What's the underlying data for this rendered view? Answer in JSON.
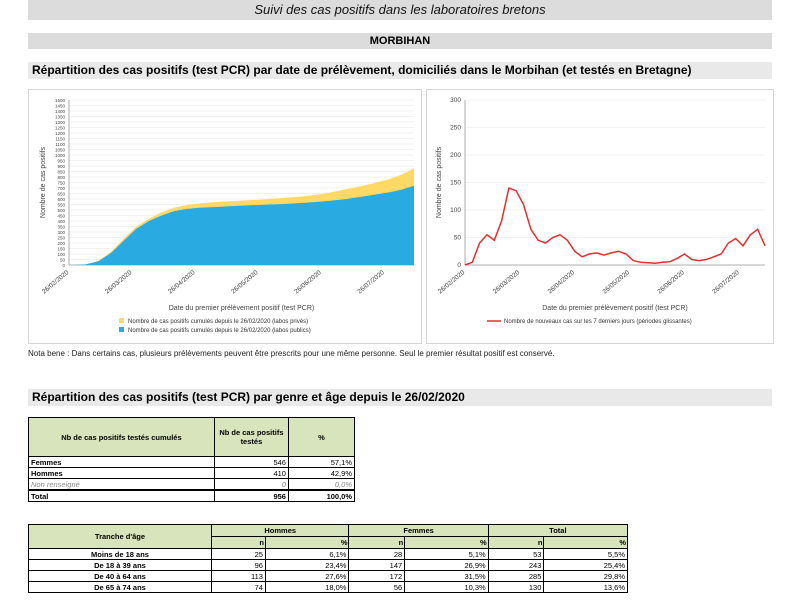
{
  "header": {
    "title": "Suivi des cas positifs dans les laboratoires bretons",
    "department": "MORBIHAN"
  },
  "section1": {
    "title": "Répartition des cas positifs (test PCR) par date de prélèvement, domiciliés dans le Morbihan (et testés en Bretagne)"
  },
  "section2": {
    "title": "Répartition des cas positifs (test PCR) par genre et âge depuis le 26/02/2020"
  },
  "note": "Nota bene : Dans certains cas, plusieurs prélèvements peuvent être prescrits pour une même personne. Seul le premier résultat positif est conservé.",
  "chart_data": [
    {
      "type": "area",
      "xlabel": "Date du premier prélèvement positif (test PCR)",
      "ylabel": "Nombre de cas positifs",
      "ylim": [
        0,
        1500
      ],
      "yticks": [
        0,
        50,
        100,
        150,
        200,
        250,
        300,
        350,
        400,
        450,
        500,
        550,
        600,
        650,
        700,
        750,
        800,
        850,
        900,
        950,
        1000,
        1050,
        1100,
        1150,
        1200,
        1250,
        1300,
        1350,
        1400,
        1450,
        1500
      ],
      "xticks": [
        "26/02/2020",
        "26/03/2020",
        "26/04/2020",
        "26/05/2020",
        "26/06/2020",
        "26/07/2020"
      ],
      "x_index_range": [
        0,
        164
      ],
      "series": [
        {
          "name": "Nombre de cas positifs cumulés depuis le 26/02/2020 (labos privés)",
          "color": "#ffd966",
          "x": [
            0,
            8,
            14,
            20,
            26,
            32,
            38,
            44,
            50,
            56,
            62,
            72,
            82,
            92,
            102,
            112,
            122,
            132,
            142,
            152,
            158,
            164
          ],
          "values": [
            0,
            5,
            40,
            120,
            240,
            350,
            420,
            480,
            520,
            545,
            560,
            575,
            585,
            595,
            610,
            625,
            650,
            690,
            730,
            780,
            820,
            880
          ]
        },
        {
          "name": "Nombre de cas positifs cumulés depuis le 26/02/2020 (labos publics)",
          "color": "#29abe2",
          "x": [
            0,
            8,
            14,
            20,
            26,
            32,
            38,
            44,
            50,
            56,
            62,
            72,
            82,
            92,
            102,
            112,
            122,
            132,
            142,
            152,
            158,
            164
          ],
          "values": [
            0,
            5,
            35,
            110,
            220,
            330,
            400,
            450,
            490,
            510,
            520,
            530,
            540,
            548,
            555,
            565,
            580,
            600,
            630,
            660,
            685,
            720
          ]
        }
      ],
      "legend": "bottom"
    },
    {
      "type": "line",
      "xlabel": "Date du premier prélèvement positif (test PCR)",
      "ylabel": "Nombre de cas positifs",
      "ylim": [
        0,
        300
      ],
      "yticks": [
        0,
        50,
        100,
        150,
        200,
        250,
        300
      ],
      "xticks": [
        "26/02/2020",
        "26/03/2020",
        "26/04/2020",
        "26/05/2020",
        "26/06/2020",
        "26/07/2020"
      ],
      "x_index_range": [
        0,
        164
      ],
      "series": [
        {
          "name": "Nombre de nouveaux cas sur les 7 derniers jours (périodes glissantes)",
          "color": "#e03030",
          "x": [
            0,
            4,
            8,
            12,
            16,
            20,
            24,
            28,
            32,
            36,
            40,
            44,
            48,
            52,
            56,
            60,
            64,
            68,
            72,
            76,
            80,
            84,
            88,
            92,
            96,
            100,
            104,
            108,
            112,
            116,
            120,
            124,
            128,
            132,
            136,
            140,
            144,
            148,
            152,
            156,
            160,
            162,
            164
          ],
          "values": [
            0,
            5,
            40,
            55,
            45,
            80,
            140,
            135,
            110,
            65,
            45,
            40,
            50,
            55,
            45,
            25,
            15,
            20,
            22,
            18,
            22,
            25,
            20,
            8,
            5,
            4,
            3,
            5,
            6,
            12,
            20,
            10,
            8,
            10,
            15,
            20,
            40,
            48,
            35,
            55,
            65,
            50,
            35
          ]
        }
      ],
      "legend": "bottom"
    }
  ],
  "table1": {
    "headers": [
      "Nb de cas positifs testés cumulés",
      "Nb de cas positifs testés",
      "%"
    ],
    "rows": [
      {
        "label": "Femmes",
        "n": "546",
        "pct": "57,1%"
      },
      {
        "label": "Hommes",
        "n": "410",
        "pct": "42,9%"
      },
      {
        "label": "Non renseigné",
        "n": "0",
        "pct": "0,0%"
      },
      {
        "label": "Total",
        "n": "956",
        "pct": "100,0%"
      }
    ]
  },
  "table2": {
    "age_header": "Tranche d'âge",
    "groups": [
      "Hommes",
      "Femmes",
      "Total"
    ],
    "n": "n",
    "pct": "%",
    "rows": [
      {
        "label": "Moins de 18 ans",
        "h_n": "25",
        "h_p": "6,1%",
        "f_n": "28",
        "f_p": "5,1%",
        "t_n": "53",
        "t_p": "5,5%"
      },
      {
        "label": "De 18 à 39 ans",
        "h_n": "96",
        "h_p": "23,4%",
        "f_n": "147",
        "f_p": "26,9%",
        "t_n": "243",
        "t_p": "25,4%"
      },
      {
        "label": "De 40 à 64 ans",
        "h_n": "113",
        "h_p": "27,6%",
        "f_n": "172",
        "f_p": "31,5%",
        "t_n": "285",
        "t_p": "29,8%"
      },
      {
        "label": "De 65 à 74 ans",
        "h_n": "74",
        "h_p": "18,0%",
        "f_n": "56",
        "f_p": "10,3%",
        "t_n": "130",
        "t_p": "13,6%"
      }
    ]
  }
}
